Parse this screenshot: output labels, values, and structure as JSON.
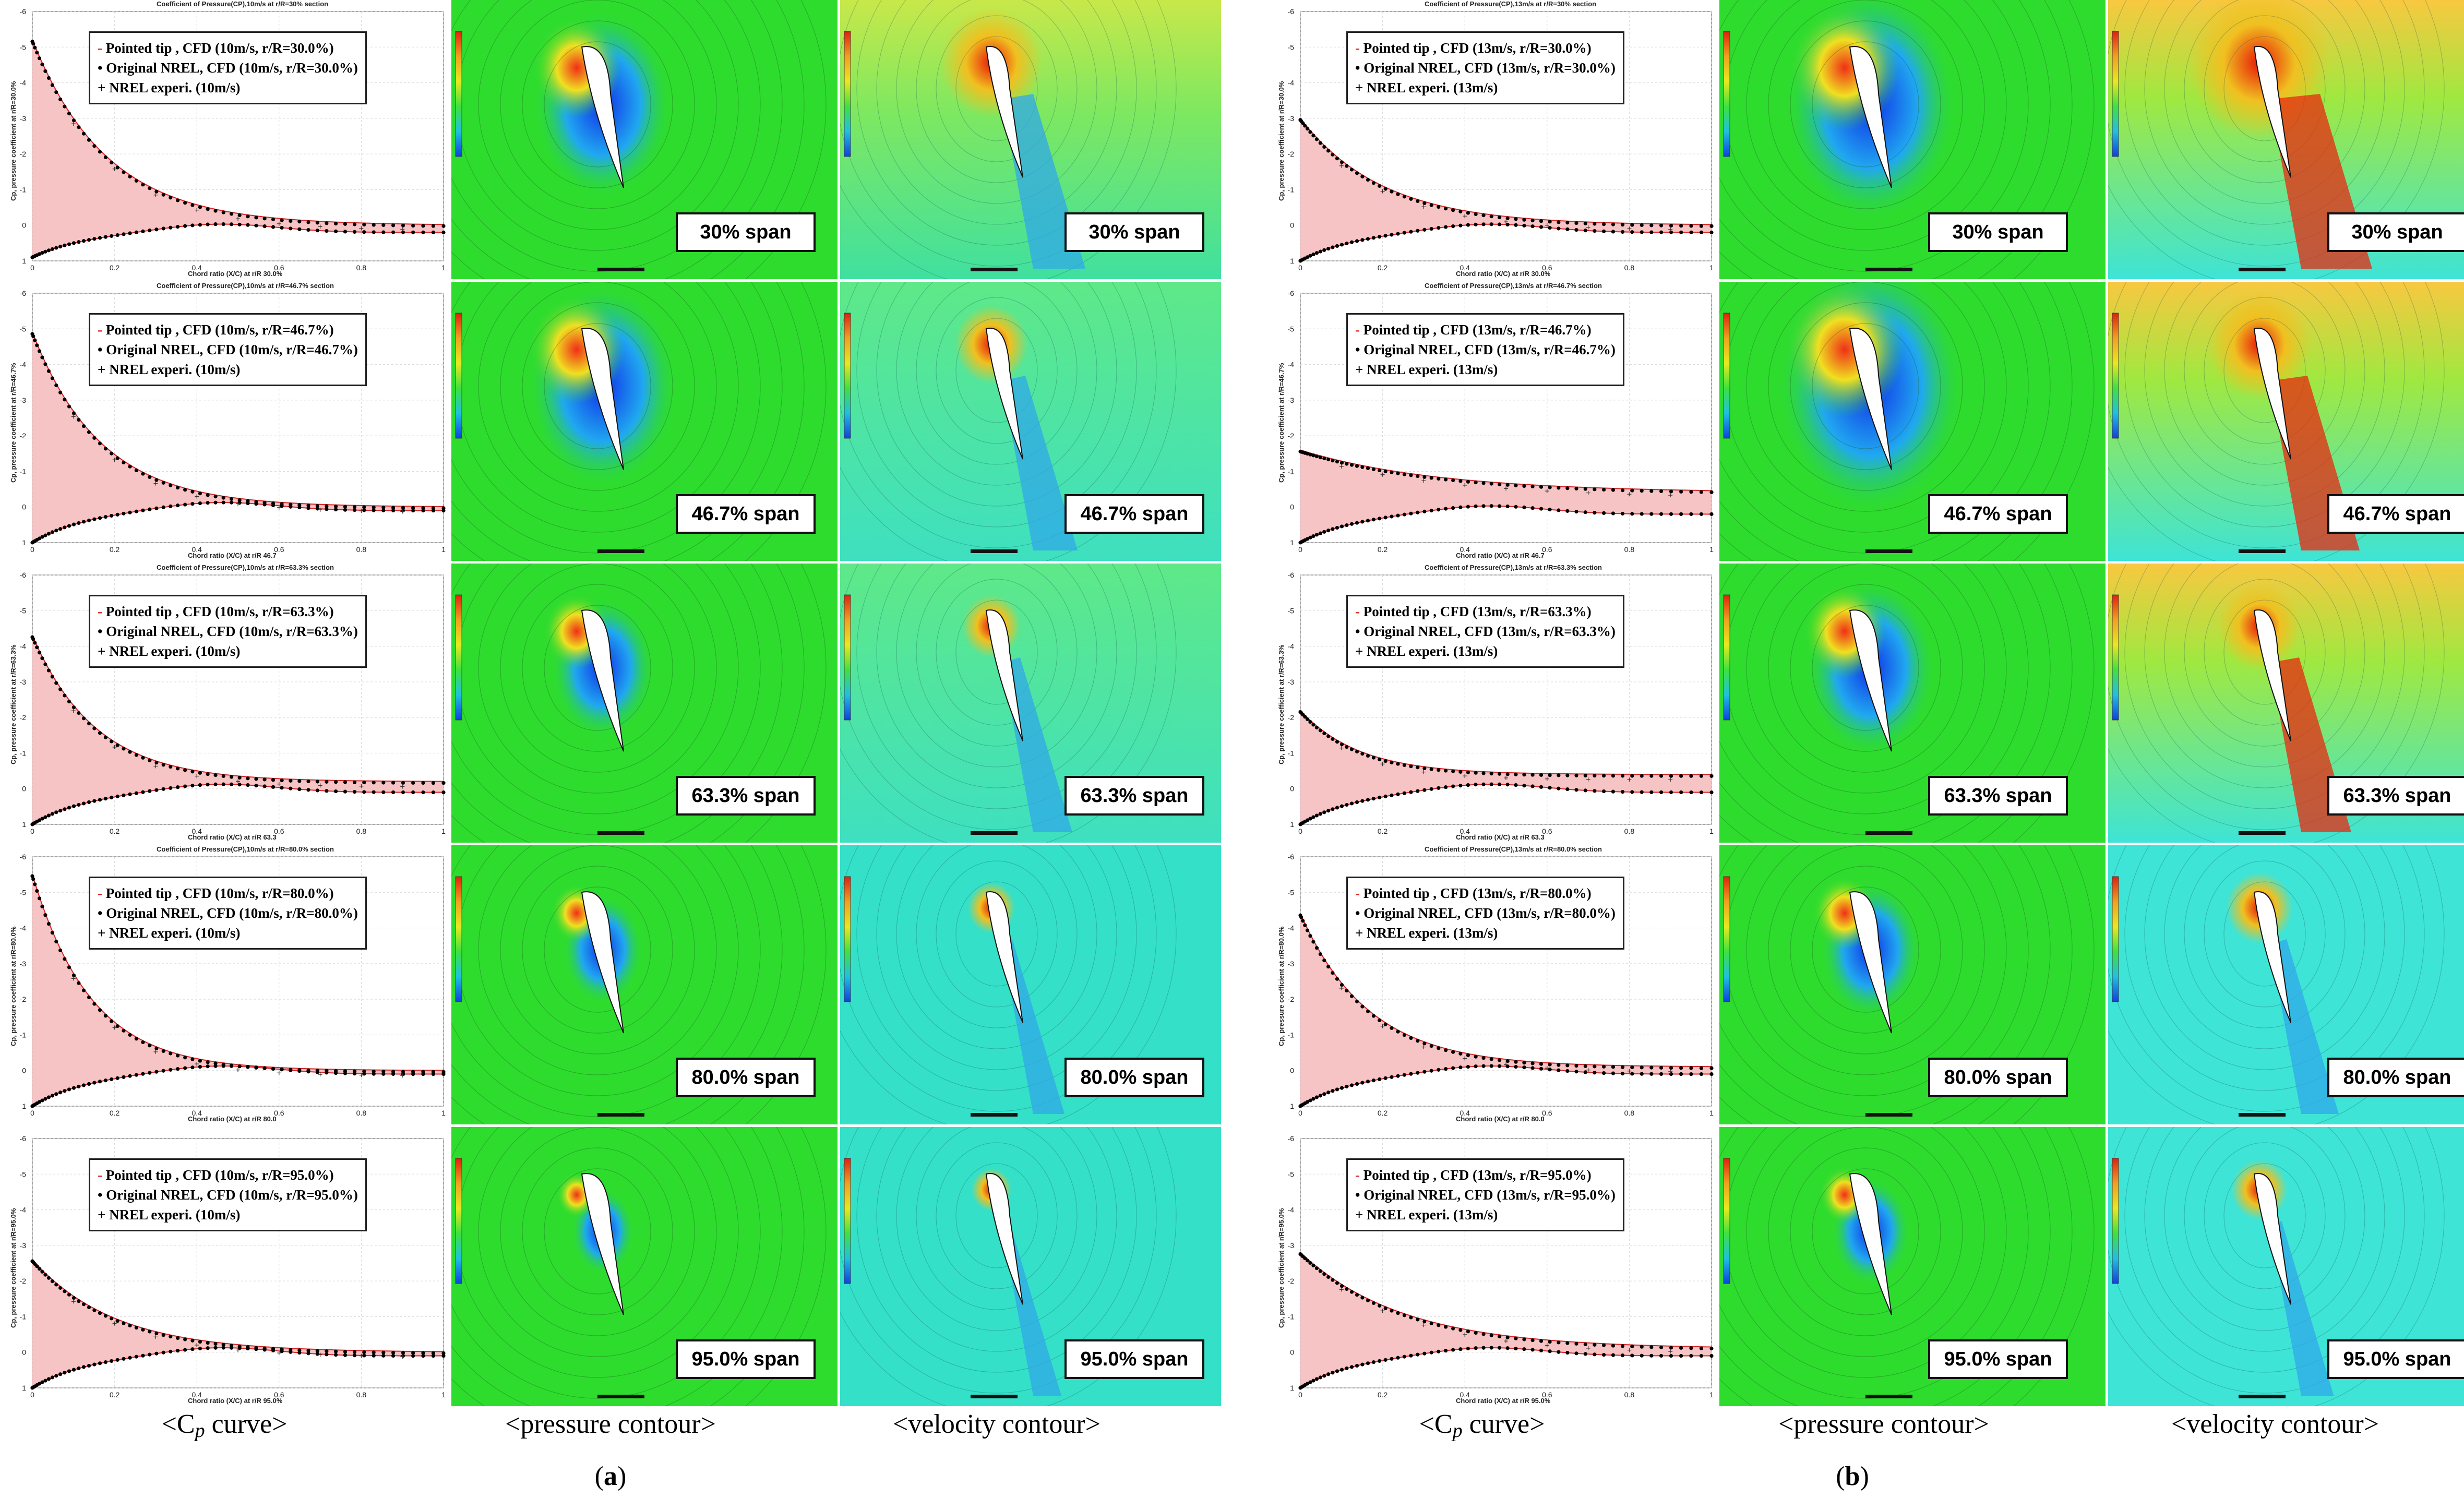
{
  "panels": [
    {
      "label": "a",
      "speed": "10m/s",
      "rows": [
        {
          "section": "30.0%",
          "span_label": "30% span",
          "legend": [
            "Pointed tip , CFD (10m/s, r/R=30.0%)",
            "Original NREL, CFD (10m/s, r/R=30.0%)",
            "NREL experi. (10m/s)"
          ],
          "title": "Coefficient of Pressure(CP),10m/s at r/R=30% section",
          "xlabel": "Chord ratio (X/C) at r/R 30.0%",
          "ylabel": "Cp, pressure coefficient at r/R=30.0%",
          "upper_start": -5.2,
          "upper_end": 0.0,
          "lower_start": 0.9,
          "lower_end": 0.2,
          "upper_decay": 5.5
        },
        {
          "section": "46.7%",
          "span_label": "46.7% span",
          "legend": [
            "Pointed tip , CFD (10m/s, r/R=46.7%)",
            "Original NREL, CFD (10m/s, r/R=46.7%)",
            "NREL experi. (10m/s)"
          ],
          "title": "Coefficient of Pressure(CP),10m/s at r/R=46.7% section",
          "xlabel": "Chord ratio (X/C) at r/R 46.7",
          "ylabel": "Cp, pressure coefficient at r/R=46.7%",
          "upper_start": -4.9,
          "upper_end": 0.0,
          "lower_start": 1.0,
          "lower_end": 0.1,
          "upper_decay": 6.0
        },
        {
          "section": "63.3%",
          "span_label": "63.3% span",
          "legend": [
            "Pointed tip , CFD (10m/s, r/R=63.3%)",
            "Original NREL, CFD (10m/s, r/R=63.3%)",
            "NREL experi. (10m/s)"
          ],
          "title": "Coefficient of Pressure(CP),10m/s at r/R=63.3% section",
          "xlabel": "Chord ratio (X/C) at r/R 63.3",
          "ylabel": "Cp, pressure coefficient at r/R=63.3%",
          "upper_start": -4.3,
          "upper_end": -0.2,
          "lower_start": 1.0,
          "lower_end": 0.1,
          "upper_decay": 6.5
        },
        {
          "section": "80.0%",
          "span_label": "80.0% span",
          "legend": [
            "Pointed tip , CFD (10m/s, r/R=80.0%)",
            "Original NREL, CFD (10m/s, r/R=80.0%)",
            "NREL experi. (10m/s)"
          ],
          "title": "Coefficient of Pressure(CP),10m/s at r/R=80.0% section",
          "xlabel": "Chord ratio (X/C) at r/R 80.0",
          "ylabel": "Cp, pressure coefficient at r/R=80.0%",
          "upper_start": -5.5,
          "upper_end": 0.0,
          "lower_start": 1.0,
          "lower_end": 0.1,
          "upper_decay": 7.0
        },
        {
          "section": "95.0%",
          "span_label": "95.0% span",
          "legend": [
            "Pointed tip , CFD (10m/s, r/R=95.0%)",
            "Original NREL, CFD (10m/s, r/R=95.0%)",
            "NREL experi. (10m/s)"
          ],
          "title": "",
          "xlabel": "Chord ratio (X/C) at r/R 95.0%",
          "ylabel": "Cp, pressure coefficient at r/R=95.0%",
          "upper_start": -2.6,
          "upper_end": 0.0,
          "lower_start": 1.0,
          "lower_end": 0.1,
          "upper_decay": 5.0
        }
      ]
    },
    {
      "label": "b",
      "speed": "13m/s",
      "rows": [
        {
          "section": "30.0%",
          "span_label": "30% span",
          "legend": [
            "Pointed tip , CFD (13m/s, r/R=30.0%)",
            "Original NREL, CFD (13m/s, r/R=30.0%)",
            "NREL experi. (13m/s)"
          ],
          "title": "Coefficient of Pressure(CP),13m/s at r/R=30% section",
          "xlabel": "Chord ratio (X/C) at r/R 30.0%",
          "ylabel": "Cp, pressure coefficient at r/R=30.0%",
          "upper_start": -3.0,
          "upper_end": 0.0,
          "lower_start": 1.0,
          "lower_end": 0.2,
          "upper_decay": 5.0
        },
        {
          "section": "46.7%",
          "span_label": "46.7% span",
          "legend": [
            "Pointed tip , CFD (13m/s, r/R=46.7%)",
            "Original NREL, CFD (13m/s, r/R=46.7%)",
            "NREL experi. (13m/s)"
          ],
          "title": "Coefficient of Pressure(CP),13m/s at r/R=46.7% section",
          "xlabel": "Chord ratio (X/C) at r/R 46.7",
          "ylabel": "Cp, pressure coefficient at r/R=46.7%",
          "upper_start": -1.6,
          "upper_end": -0.4,
          "lower_start": 1.0,
          "lower_end": 0.2,
          "upper_decay": 3.0
        },
        {
          "section": "63.3%",
          "span_label": "63.3% span",
          "legend": [
            "Pointed tip , CFD (13m/s, r/R=63.3%)",
            "Original NREL, CFD (13m/s, r/R=63.3%)",
            "NREL experi. (13m/s)"
          ],
          "title": "Coefficient of Pressure(CP),13m/s at r/R=63.3% section",
          "xlabel": "Chord ratio (X/C) at r/R 63.3",
          "ylabel": "Cp, pressure coefficient at r/R=63.3%",
          "upper_start": -2.2,
          "upper_end": -0.4,
          "lower_start": 1.0,
          "lower_end": 0.1,
          "upper_decay": 7.0
        },
        {
          "section": "80.0%",
          "span_label": "80.0% span",
          "legend": [
            "Pointed tip , CFD (13m/s, r/R=80.0%)",
            "Original NREL, CFD (13m/s, r/R=80.0%)",
            "NREL experi. (13m/s)"
          ],
          "title": "Coefficient of Pressure(CP),13m/s at r/R=80.0% section",
          "xlabel": "Chord ratio (X/C) at r/R 80.0",
          "ylabel": "Cp, pressure coefficient at r/R=80.0%",
          "upper_start": -4.4,
          "upper_end": -0.1,
          "lower_start": 1.0,
          "lower_end": 0.1,
          "upper_decay": 6.0
        },
        {
          "section": "95.0%",
          "span_label": "95.0% span",
          "legend": [
            "Pointed tip , CFD (13m/s, r/R=95.0%)",
            "Original NREL, CFD (13m/s, r/R=95.0%)",
            "NREL experi. (13m/s)"
          ],
          "title": "",
          "xlabel": "Chord ratio (X/C) at r/R 95.0%",
          "ylabel": "Cp, pressure coefficient at r/R=95.0%",
          "upper_start": -2.8,
          "upper_end": -0.1,
          "lower_start": 1.0,
          "lower_end": 0.1,
          "upper_decay": 4.0
        }
      ]
    }
  ],
  "captions": [
    "<C",
    "p",
    " curve>",
    "<pressure contour>",
    "<velocity contour>"
  ],
  "legend_markers": [
    "-",
    "•",
    "+"
  ],
  "colors": {
    "pointed_tip": "#d62424",
    "pointed_tip_fill": "#f6c4c4",
    "original_nrel": "#000000",
    "pressure_bg": "#2edc2e",
    "velocity_bg_a_low": "#34e0c8",
    "velocity_bg_a_high": "#c8e84a",
    "velocity_bg_b": "#3ee4d6",
    "suction": "#1030e8",
    "stagnation": "#f03018",
    "wake": "#e82a10"
  },
  "chart_data": {
    "type": "line",
    "xlabel": "Chord ratio (X/C)",
    "ylabel": "Cp, pressure coefficient",
    "xlim": [
      0,
      1
    ],
    "ylim": [
      1,
      -6
    ],
    "x_ticks": [
      0,
      0.2,
      0.4,
      0.6,
      0.8,
      1
    ],
    "y_ticks": [
      -6,
      -5,
      -4,
      -3,
      -2,
      -1,
      0,
      1
    ],
    "series": [
      {
        "name": "Pointed tip , CFD",
        "style": "red line with pink fill"
      },
      {
        "name": "Original NREL, CFD",
        "style": "black dots"
      },
      {
        "name": "NREL experi.",
        "style": "plus markers"
      }
    ]
  }
}
